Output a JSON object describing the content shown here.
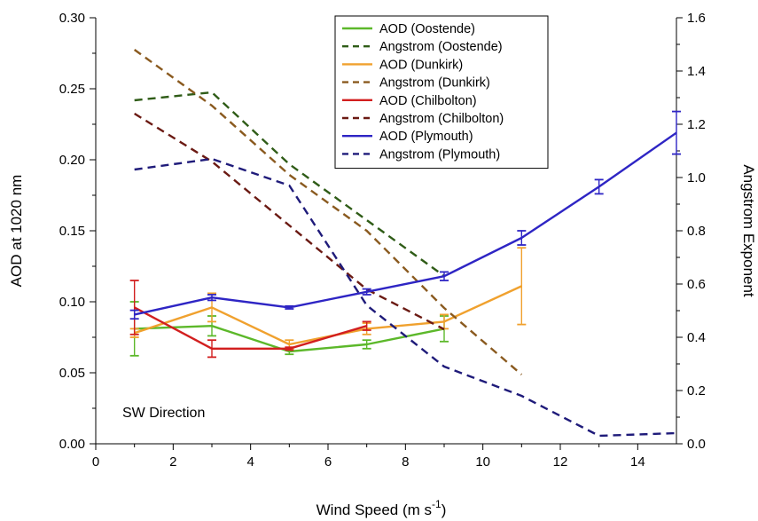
{
  "chart_data": {
    "type": "line",
    "annotation": "SW Direction",
    "xlabel": "Wind Speed (m s",
    "xlabel_sup": "-1",
    "xlabel_end": ")",
    "ylabel_left": "AOD at 1020 nm",
    "ylabel_right": "Angstrom Exponent",
    "xlim": [
      0,
      15
    ],
    "ylim_left": [
      0,
      0.3
    ],
    "ylim_right": [
      0,
      1.6
    ],
    "x_ticks": [
      0,
      2,
      4,
      6,
      8,
      10,
      12,
      14
    ],
    "x_tick_labels": [
      "0",
      "2",
      "4",
      "6",
      "8",
      "10",
      "12",
      "14"
    ],
    "y_left_ticks": [
      0,
      0.05,
      0.1,
      0.15,
      0.2,
      0.25,
      0.3
    ],
    "y_left_tick_labels": [
      "0.00",
      "0.05",
      "0.10",
      "0.15",
      "0.20",
      "0.25",
      "0.30"
    ],
    "y_right_ticks": [
      0,
      0.2,
      0.4,
      0.6,
      0.8,
      1.0,
      1.2,
      1.4,
      1.6
    ],
    "y_right_tick_labels": [
      "0.0",
      "0.2",
      "0.4",
      "0.6",
      "0.8",
      "1.0",
      "1.2",
      "1.4",
      "1.6"
    ],
    "grid": false,
    "legend_position": "top-center",
    "series": [
      {
        "name": "AOD (Oostende)",
        "axis": "left",
        "dashed": false,
        "color": "#5cb82a",
        "x": [
          1,
          3,
          5,
          7,
          9
        ],
        "y": [
          0.081,
          0.083,
          0.065,
          0.07,
          0.081
        ],
        "err": [
          0.019,
          0.007,
          0.002,
          0.003,
          0.009
        ]
      },
      {
        "name": "Angstrom (Oostende)",
        "axis": "right",
        "dashed": true,
        "color": "#2f5c17",
        "x": [
          1,
          3,
          5,
          7,
          9
        ],
        "y": [
          1.29,
          1.32,
          1.05,
          0.84,
          0.63
        ]
      },
      {
        "name": "AOD (Dunkirk)",
        "axis": "left",
        "dashed": false,
        "color": "#f0a12e",
        "x": [
          1,
          3,
          5,
          7,
          9,
          11
        ],
        "y": [
          0.078,
          0.096,
          0.07,
          0.081,
          0.086,
          0.111
        ],
        "err": [
          0.003,
          0.01,
          0.003,
          0.004,
          0.005,
          0.027
        ]
      },
      {
        "name": "Angstrom (Dunkirk)",
        "axis": "right",
        "dashed": true,
        "color": "#8a5a1f",
        "x": [
          1,
          3,
          5,
          7,
          9,
          11
        ],
        "y": [
          1.48,
          1.27,
          1.01,
          0.8,
          0.51,
          0.26
        ]
      },
      {
        "name": "AOD (Chilbolton)",
        "axis": "left",
        "dashed": false,
        "color": "#d21f1f",
        "x": [
          1,
          3,
          5,
          7
        ],
        "y": [
          0.096,
          0.067,
          0.067,
          0.083
        ],
        "err": [
          0.019,
          0.006,
          0.001,
          0.003
        ]
      },
      {
        "name": "Angstrom (Chilbolton)",
        "axis": "right",
        "dashed": true,
        "color": "#6b1a13",
        "x": [
          1,
          3,
          5,
          7,
          9
        ],
        "y": [
          1.24,
          1.06,
          0.82,
          0.58,
          0.43
        ]
      },
      {
        "name": "AOD (Plymouth)",
        "axis": "left",
        "dashed": false,
        "color": "#2e25c4",
        "x": [
          1,
          3,
          5,
          7,
          9,
          11,
          13,
          15
        ],
        "y": [
          0.091,
          0.103,
          0.096,
          0.107,
          0.118,
          0.145,
          0.181,
          0.219
        ],
        "err": [
          0.003,
          0.002,
          0.001,
          0.002,
          0.003,
          0.005,
          0.005,
          0.015
        ]
      },
      {
        "name": "Angstrom (Plymouth)",
        "axis": "right",
        "dashed": true,
        "color": "#1f1b7a",
        "x": [
          1,
          3,
          5,
          7,
          9,
          11,
          13,
          15
        ],
        "y": [
          1.03,
          1.07,
          0.97,
          0.52,
          0.29,
          0.18,
          0.03,
          0.04
        ]
      }
    ]
  }
}
